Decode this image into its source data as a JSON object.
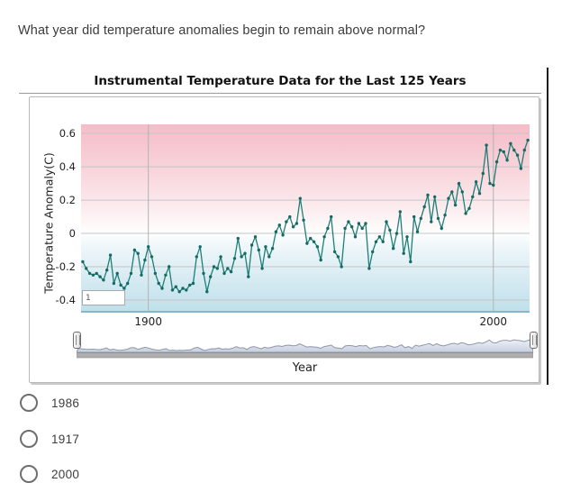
{
  "question": {
    "text": "What year did temperature anomalies begin to remain above normal?"
  },
  "chart": {
    "title": "Instrumental Temperature Data for the Last 125 Years",
    "annotation": "1",
    "y_axis": {
      "title": "Temperature Anomaly(C)",
      "ticks": [
        "0.6",
        "0.4",
        "0.2",
        "0",
        "-0.2",
        "-0.4"
      ],
      "tick_values": [
        0.6,
        0.4,
        0.2,
        0,
        -0.2,
        -0.4
      ]
    },
    "x_axis": {
      "title": "Year",
      "ticks": [
        "1900",
        "2000"
      ],
      "tick_values": [
        1900,
        2000
      ]
    }
  },
  "chart_data": {
    "type": "line",
    "title": "Instrumental Temperature Data for the Last 125 Years",
    "xlabel": "Year",
    "ylabel": "Temperature Anomaly(C)",
    "xlim": [
      1880.5,
      2010.5
    ],
    "ylim": [
      -0.465,
      0.655
    ],
    "x_gridlines": [
      1900,
      2000
    ],
    "y_gridlines": [
      0.6,
      0.4,
      0.2,
      0,
      -0.2,
      -0.4
    ],
    "grid": true,
    "legend": false,
    "x": [
      1881,
      1882,
      1883,
      1884,
      1885,
      1886,
      1887,
      1888,
      1889,
      1890,
      1891,
      1892,
      1893,
      1894,
      1895,
      1896,
      1897,
      1898,
      1899,
      1900,
      1901,
      1902,
      1903,
      1904,
      1905,
      1906,
      1907,
      1908,
      1909,
      1910,
      1911,
      1912,
      1913,
      1914,
      1915,
      1916,
      1917,
      1918,
      1919,
      1920,
      1921,
      1922,
      1923,
      1924,
      1925,
      1926,
      1927,
      1928,
      1929,
      1930,
      1931,
      1932,
      1933,
      1934,
      1935,
      1936,
      1937,
      1938,
      1939,
      1940,
      1941,
      1942,
      1943,
      1944,
      1945,
      1946,
      1947,
      1948,
      1949,
      1950,
      1951,
      1952,
      1953,
      1954,
      1955,
      1956,
      1957,
      1958,
      1959,
      1960,
      1961,
      1962,
      1963,
      1964,
      1965,
      1966,
      1967,
      1968,
      1969,
      1970,
      1971,
      1972,
      1973,
      1974,
      1975,
      1976,
      1977,
      1978,
      1979,
      1980,
      1981,
      1982,
      1983,
      1984,
      1985,
      1986,
      1987,
      1988,
      1989,
      1990,
      1991,
      1992,
      1993,
      1994,
      1995,
      1996,
      1997,
      1998,
      1999,
      2000,
      2001,
      2002,
      2003,
      2004,
      2005,
      2006,
      2007,
      2008,
      2009,
      2010
    ],
    "series": [
      {
        "name": "Temperature Anomaly (C)",
        "values": [
          -0.17,
          -0.21,
          -0.24,
          -0.25,
          -0.24,
          -0.26,
          -0.28,
          -0.22,
          -0.13,
          -0.3,
          -0.24,
          -0.31,
          -0.33,
          -0.3,
          -0.24,
          -0.1,
          -0.12,
          -0.25,
          -0.16,
          -0.08,
          -0.14,
          -0.24,
          -0.3,
          -0.33,
          -0.25,
          -0.2,
          -0.34,
          -0.32,
          -0.35,
          -0.33,
          -0.34,
          -0.31,
          -0.3,
          -0.14,
          -0.08,
          -0.24,
          -0.35,
          -0.26,
          -0.2,
          -0.21,
          -0.14,
          -0.24,
          -0.21,
          -0.23,
          -0.15,
          -0.03,
          -0.14,
          -0.12,
          -0.26,
          -0.07,
          -0.02,
          -0.1,
          -0.21,
          -0.08,
          -0.14,
          -0.09,
          0.01,
          0.05,
          -0.01,
          0.07,
          0.1,
          0.04,
          0.06,
          0.21,
          0.08,
          -0.06,
          -0.03,
          -0.05,
          -0.08,
          -0.16,
          -0.02,
          0.03,
          0.1,
          -0.11,
          -0.14,
          -0.2,
          0.03,
          0.07,
          0.04,
          -0.02,
          0.06,
          0.03,
          0.06,
          -0.21,
          -0.11,
          -0.05,
          -0.02,
          -0.05,
          0.07,
          0.02,
          -0.09,
          0.0,
          0.13,
          -0.12,
          -0.02,
          -0.17,
          0.1,
          0.01,
          0.09,
          0.16,
          0.23,
          0.07,
          0.22,
          0.09,
          0.03,
          0.11,
          0.21,
          0.25,
          0.17,
          0.3,
          0.25,
          0.12,
          0.15,
          0.22,
          0.31,
          0.24,
          0.36,
          0.53,
          0.3,
          0.29,
          0.43,
          0.5,
          0.49,
          0.44,
          0.54,
          0.5,
          0.47,
          0.39,
          0.5,
          0.56
        ]
      }
    ]
  },
  "navigator": {
    "description": "range slider with area-chart preview of full series"
  },
  "options": [
    {
      "label": "1986"
    },
    {
      "label": "1917"
    },
    {
      "label": "2000"
    }
  ],
  "colors": {
    "line": "#1e7f78",
    "marker": "#156b64",
    "above_normal_band": "#f5bcc8",
    "below_normal_band": "#bfe0eb",
    "navigator_fill": "#c6cfdf",
    "navigator_stroke": "#8d96aa",
    "grid": "#c5c5c5"
  }
}
